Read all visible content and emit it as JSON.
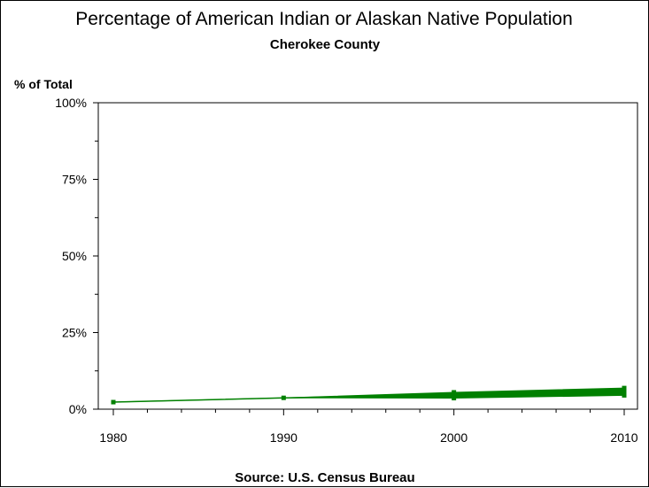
{
  "chart_data": {
    "type": "line",
    "title": "Percentage of American Indian or Alaskan Native Population",
    "subtitle": "Cherokee County",
    "ylabel": "% of Total",
    "source": "Source: U.S. Census Bureau",
    "x_ticks": [
      "1980",
      "1990",
      "2000",
      "2010"
    ],
    "x_tick_values": [
      1980,
      1990,
      2000,
      2010
    ],
    "y_ticks": [
      "0%",
      "25%",
      "50%",
      "75%",
      "100%"
    ],
    "y_tick_values": [
      0,
      25,
      50,
      75,
      100
    ],
    "xlim": [
      1980,
      2010
    ],
    "ylim": [
      0,
      100
    ],
    "grid": false,
    "colors": {
      "series": "#008000",
      "axis": "#000000",
      "background": "#ffffff"
    },
    "series": [
      {
        "x": [
          1980,
          1990,
          2000,
          2010
        ],
        "y": [
          2.3,
          3.7,
          4.7,
          5.8
        ],
        "y_low": [
          2.3,
          3.7,
          3.6,
          4.5
        ],
        "y_high": [
          2.3,
          3.7,
          5.5,
          6.9
        ]
      }
    ]
  }
}
